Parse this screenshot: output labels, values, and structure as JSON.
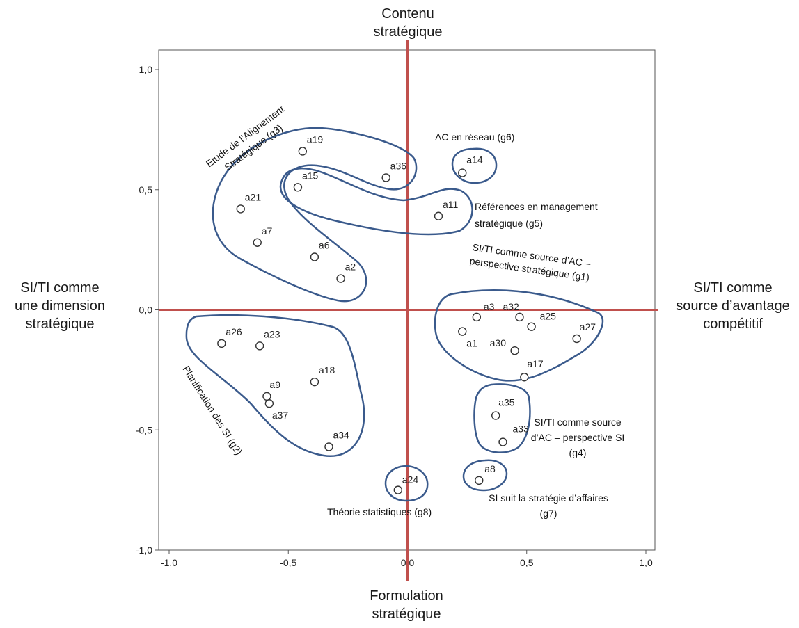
{
  "chart_data": {
    "type": "scatter",
    "xlim": [
      -1.0,
      1.0
    ],
    "ylim": [
      -1.0,
      1.0
    ],
    "x_ticks": [
      "-1,0",
      "-0,5",
      "0,0",
      "0,5",
      "1,0"
    ],
    "y_ticks": [
      "1,0",
      "0,5",
      "0,0",
      "-0,5",
      "-1,0"
    ],
    "axis_words": {
      "top": [
        "Contenu",
        "stratégique"
      ],
      "bottom": [
        "Formulation",
        "stratégique"
      ],
      "left": [
        "SI/TI comme",
        "une dimension",
        "stratégique"
      ],
      "right": [
        "SI/TI comme",
        "source d’avantage",
        "compétitif"
      ]
    },
    "grid": false,
    "quadrant_line_color": "#c0504d",
    "group_outline_color": "#3a5a8c",
    "points": [
      {
        "label": "a1",
        "x": 0.23,
        "y": -0.09
      },
      {
        "label": "a2",
        "x": -0.28,
        "y": 0.13
      },
      {
        "label": "a3",
        "x": 0.29,
        "y": -0.03
      },
      {
        "label": "a32",
        "x": 0.47,
        "y": -0.03
      },
      {
        "label": "a25",
        "x": 0.52,
        "y": -0.07
      },
      {
        "label": "a27",
        "x": 0.71,
        "y": -0.12
      },
      {
        "label": "a30",
        "x": 0.45,
        "y": -0.17
      },
      {
        "label": "a17",
        "x": 0.49,
        "y": -0.28
      },
      {
        "label": "a6",
        "x": -0.39,
        "y": 0.22
      },
      {
        "label": "a7",
        "x": -0.63,
        "y": 0.28
      },
      {
        "label": "a21",
        "x": -0.7,
        "y": 0.42
      },
      {
        "label": "a15",
        "x": -0.46,
        "y": 0.51
      },
      {
        "label": "a19",
        "x": -0.44,
        "y": 0.66
      },
      {
        "label": "a36",
        "x": -0.09,
        "y": 0.55
      },
      {
        "label": "a14",
        "x": 0.23,
        "y": 0.57
      },
      {
        "label": "a11",
        "x": 0.13,
        "y": 0.39
      },
      {
        "label": "a26",
        "x": -0.78,
        "y": -0.14
      },
      {
        "label": "a23",
        "x": -0.62,
        "y": -0.15
      },
      {
        "label": "a18",
        "x": -0.39,
        "y": -0.3
      },
      {
        "label": "a9",
        "x": -0.59,
        "y": -0.36
      },
      {
        "label": "a37",
        "x": -0.58,
        "y": -0.39
      },
      {
        "label": "a34",
        "x": -0.33,
        "y": -0.57
      },
      {
        "label": "a35",
        "x": 0.37,
        "y": -0.44
      },
      {
        "label": "a33",
        "x": 0.4,
        "y": -0.55
      },
      {
        "label": "a8",
        "x": 0.3,
        "y": -0.71
      },
      {
        "label": "a24",
        "x": -0.04,
        "y": -0.75
      }
    ],
    "groups": [
      {
        "id": "g1",
        "label_lines": [
          "SI/TI comme source d’AC –",
          "perspective stratégique (g1)"
        ]
      },
      {
        "id": "g2",
        "label_lines": [
          "Planification des SI (g2)"
        ]
      },
      {
        "id": "g3",
        "label_lines": [
          "Etude de l’Alignement",
          "Stratégique (g3)"
        ]
      },
      {
        "id": "g4",
        "label_lines": [
          "SI/TI comme source",
          "d’AC – perspective SI",
          "(g4)"
        ]
      },
      {
        "id": "g5",
        "label_lines": [
          "Références en management",
          "stratégique (g5)"
        ]
      },
      {
        "id": "g6",
        "label_lines": [
          "AC en réseau (g6)"
        ]
      },
      {
        "id": "g7",
        "label_lines": [
          "SI suit la stratégie d’affaires",
          "(g7)"
        ]
      },
      {
        "id": "g8",
        "label_lines": [
          "Théorie statistiques (g8)"
        ]
      }
    ]
  }
}
